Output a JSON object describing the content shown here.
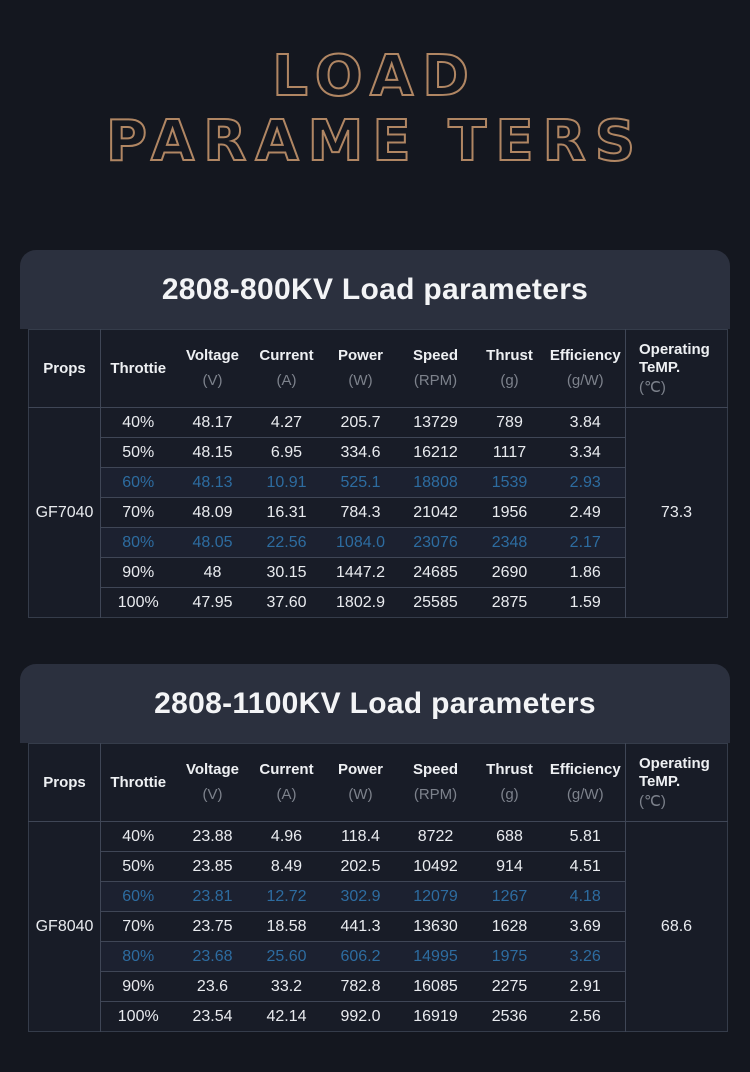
{
  "page_title": {
    "line1": "LOAD",
    "line2": "PARAME TERS"
  },
  "colors": {
    "background": "#14171f",
    "card_header_bg": "#2b303e",
    "table_bg": "#181c27",
    "title_outline": "#b08663",
    "highlight_blue": "#2d6ca0",
    "grid_line": "#3f4656",
    "text_primary": "#e9ebef",
    "text_unit": "#7d828c"
  },
  "columns": {
    "props_label": "Props",
    "throttle_label": "Throttie",
    "value_columns": [
      {
        "label": "Voltage",
        "unit": "(V)"
      },
      {
        "label": "Current",
        "unit": "(A)"
      },
      {
        "label": "Power",
        "unit": "(W)"
      },
      {
        "label": "Speed",
        "unit": "(RPM)"
      },
      {
        "label": "Thrust",
        "unit": "(g)"
      },
      {
        "label": "Efficiency",
        "unit": "(g/W)"
      }
    ],
    "temp_column": {
      "line1": "Operating",
      "line2": "TeMP.",
      "unit": "(℃)"
    }
  },
  "tables": [
    {
      "title": "2808-800KV Load parameters",
      "props": "GF7040",
      "operating_temp": "73.3",
      "rows": [
        {
          "throttle": "40%",
          "values": [
            "48.17",
            "4.27",
            "205.7",
            "13729",
            "789",
            "3.84"
          ],
          "highlight": false
        },
        {
          "throttle": "50%",
          "values": [
            "48.15",
            "6.95",
            "334.6",
            "16212",
            "1117",
            "3.34"
          ],
          "highlight": false
        },
        {
          "throttle": "60%",
          "values": [
            "48.13",
            "10.91",
            "525.1",
            "18808",
            "1539",
            "2.93"
          ],
          "highlight": true
        },
        {
          "throttle": "70%",
          "values": [
            "48.09",
            "16.31",
            "784.3",
            "21042",
            "1956",
            "2.49"
          ],
          "highlight": false
        },
        {
          "throttle": "80%",
          "values": [
            "48.05",
            "22.56",
            "1084.0",
            "23076",
            "2348",
            "2.17"
          ],
          "highlight": true
        },
        {
          "throttle": "90%",
          "values": [
            "48",
            "30.15",
            "1447.2",
            "24685",
            "2690",
            "1.86"
          ],
          "highlight": false
        },
        {
          "throttle": "100%",
          "values": [
            "47.95",
            "37.60",
            "1802.9",
            "25585",
            "2875",
            "1.59"
          ],
          "highlight": false
        }
      ]
    },
    {
      "title": "2808-1100KV Load parameters",
      "props": "GF8040",
      "operating_temp": "68.6",
      "rows": [
        {
          "throttle": "40%",
          "values": [
            "23.88",
            "4.96",
            "118.4",
            "8722",
            "688",
            "5.81"
          ],
          "highlight": false
        },
        {
          "throttle": "50%",
          "values": [
            "23.85",
            "8.49",
            "202.5",
            "10492",
            "914",
            "4.51"
          ],
          "highlight": false
        },
        {
          "throttle": "60%",
          "values": [
            "23.81",
            "12.72",
            "302.9",
            "12079",
            "1267",
            "4.18"
          ],
          "highlight": true
        },
        {
          "throttle": "70%",
          "values": [
            "23.75",
            "18.58",
            "441.3",
            "13630",
            "1628",
            "3.69"
          ],
          "highlight": false
        },
        {
          "throttle": "80%",
          "values": [
            "23.68",
            "25.60",
            "606.2",
            "14995",
            "1975",
            "3.26"
          ],
          "highlight": true
        },
        {
          "throttle": "90%",
          "values": [
            "23.6",
            "33.2",
            "782.8",
            "16085",
            "2275",
            "2.91"
          ],
          "highlight": false
        },
        {
          "throttle": "100%",
          "values": [
            "23.54",
            "42.14",
            "992.0",
            "16919",
            "2536",
            "2.56"
          ],
          "highlight": false
        }
      ]
    }
  ]
}
